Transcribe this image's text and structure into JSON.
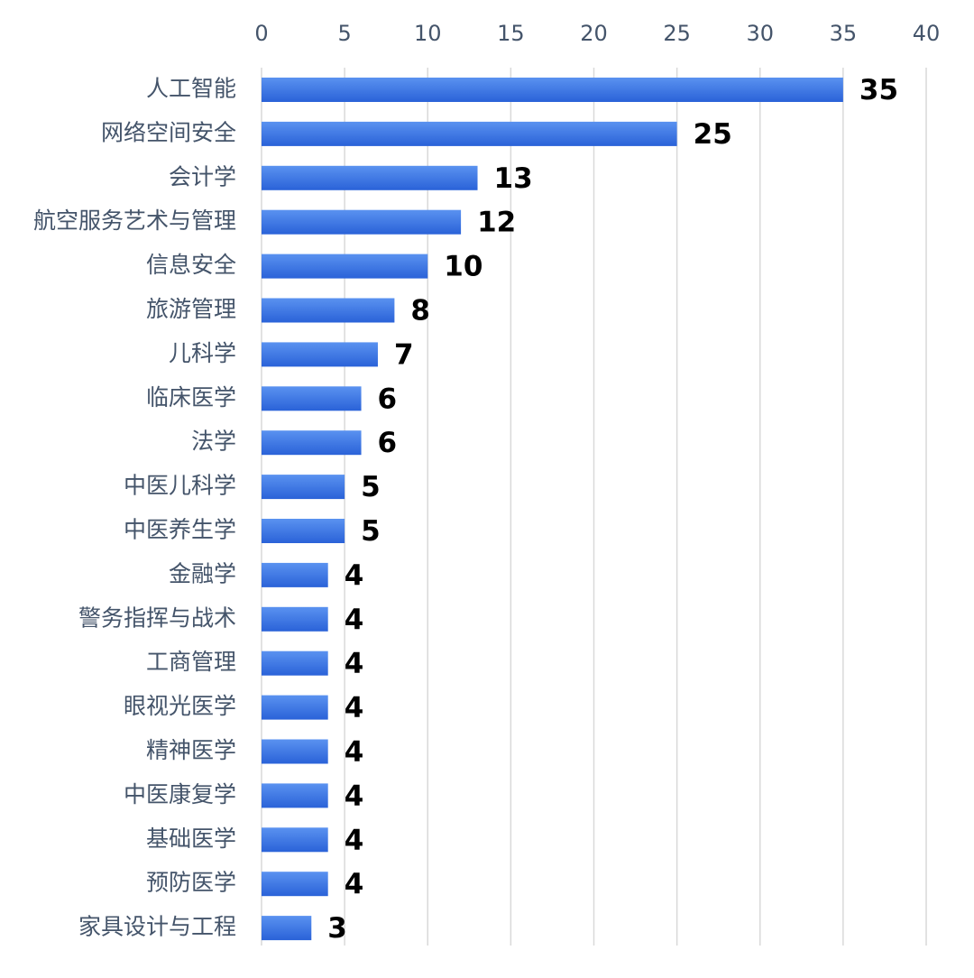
{
  "chart_data": {
    "type": "bar",
    "orientation": "horizontal",
    "categories": [
      "人工智能",
      "网络空间安全",
      "会计学",
      "航空服务艺术与管理",
      "信息安全",
      "旅游管理",
      "儿科学",
      "临床医学",
      "法学",
      "中医儿科学",
      "中医养生学",
      "金融学",
      "警务指挥与战术",
      "工商管理",
      "眼视光医学",
      "精神医学",
      "中医康复学",
      "基础医学",
      "预防医学",
      "家具设计与工程"
    ],
    "values": [
      35,
      25,
      13,
      12,
      10,
      8,
      7,
      6,
      6,
      5,
      5,
      4,
      4,
      4,
      4,
      4,
      4,
      4,
      4,
      3
    ],
    "xlim": [
      0,
      40
    ],
    "xticks": [
      0,
      5,
      10,
      15,
      20,
      25,
      30,
      35,
      40
    ],
    "xaxis_position": "top",
    "grid": true,
    "legend": "none",
    "data_labels": true,
    "colors": {
      "bar": "#2f6fe0",
      "bar_light": "#5a92f0",
      "grid": "#d9d9d9",
      "text": "#44546a"
    }
  }
}
